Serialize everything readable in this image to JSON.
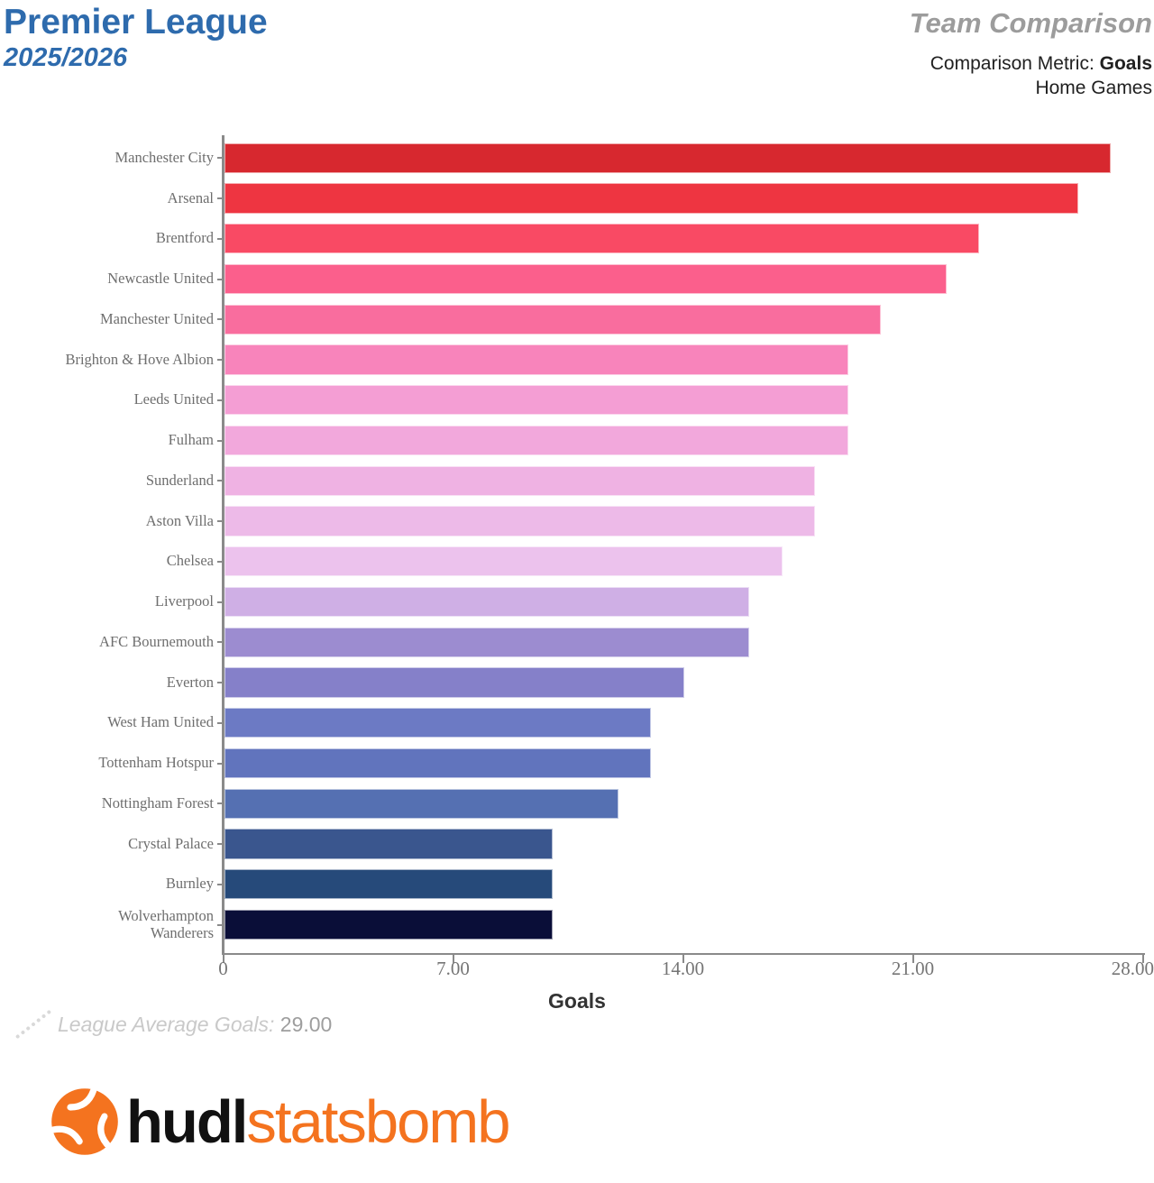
{
  "header": {
    "title": "Premier League",
    "season": "2025/2026",
    "right_title": "Team Comparison",
    "metric_label": "Comparison Metric: ",
    "metric_value": "Goals",
    "games_scope": "Home Games"
  },
  "chart_data": {
    "type": "bar",
    "orientation": "horizontal",
    "xlabel": "Goals",
    "xlim": [
      0,
      28
    ],
    "grid": false,
    "xticks": [
      0,
      7,
      14,
      21,
      28
    ],
    "xtick_labels": [
      "0",
      "7.00",
      "14.00",
      "21.00",
      "28.00"
    ],
    "categories": [
      "Manchester City",
      "Arsenal",
      "Brentford",
      "Newcastle United",
      "Manchester United",
      "Brighton & Hove Albion",
      "Leeds United",
      "Fulham",
      "Sunderland",
      "Aston Villa",
      "Chelsea",
      "Liverpool",
      "AFC Bournemouth",
      "Everton",
      "West Ham United",
      "Tottenham Hotspur",
      "Nottingham Forest",
      "Crystal Palace",
      "Burnley",
      "Wolverhampton\nWanderers"
    ],
    "values": [
      27,
      26,
      23,
      22,
      20,
      19,
      19,
      19,
      18,
      18,
      17,
      16,
      16,
      14,
      13,
      13,
      12,
      10,
      10,
      10
    ],
    "bar_colors": [
      "#d7282f",
      "#ee3541",
      "#f94a64",
      "#fb5f8c",
      "#f96d9e",
      "#f884bb",
      "#f49ed4",
      "#f2a8dc",
      "#efb2e3",
      "#edbae8",
      "#ecc2ed",
      "#cfafe5",
      "#9c8cd0",
      "#8580c9",
      "#6c7ac4",
      "#6174bd",
      "#5570b2",
      "#3a568e",
      "#264a7a",
      "#0a0e38"
    ],
    "league_average": {
      "label": "League Average Goals:",
      "value": "29.00"
    }
  },
  "logo": {
    "hudl": "hudl",
    "statsbomb": "statsbomb",
    "orange": "#f4731f"
  }
}
